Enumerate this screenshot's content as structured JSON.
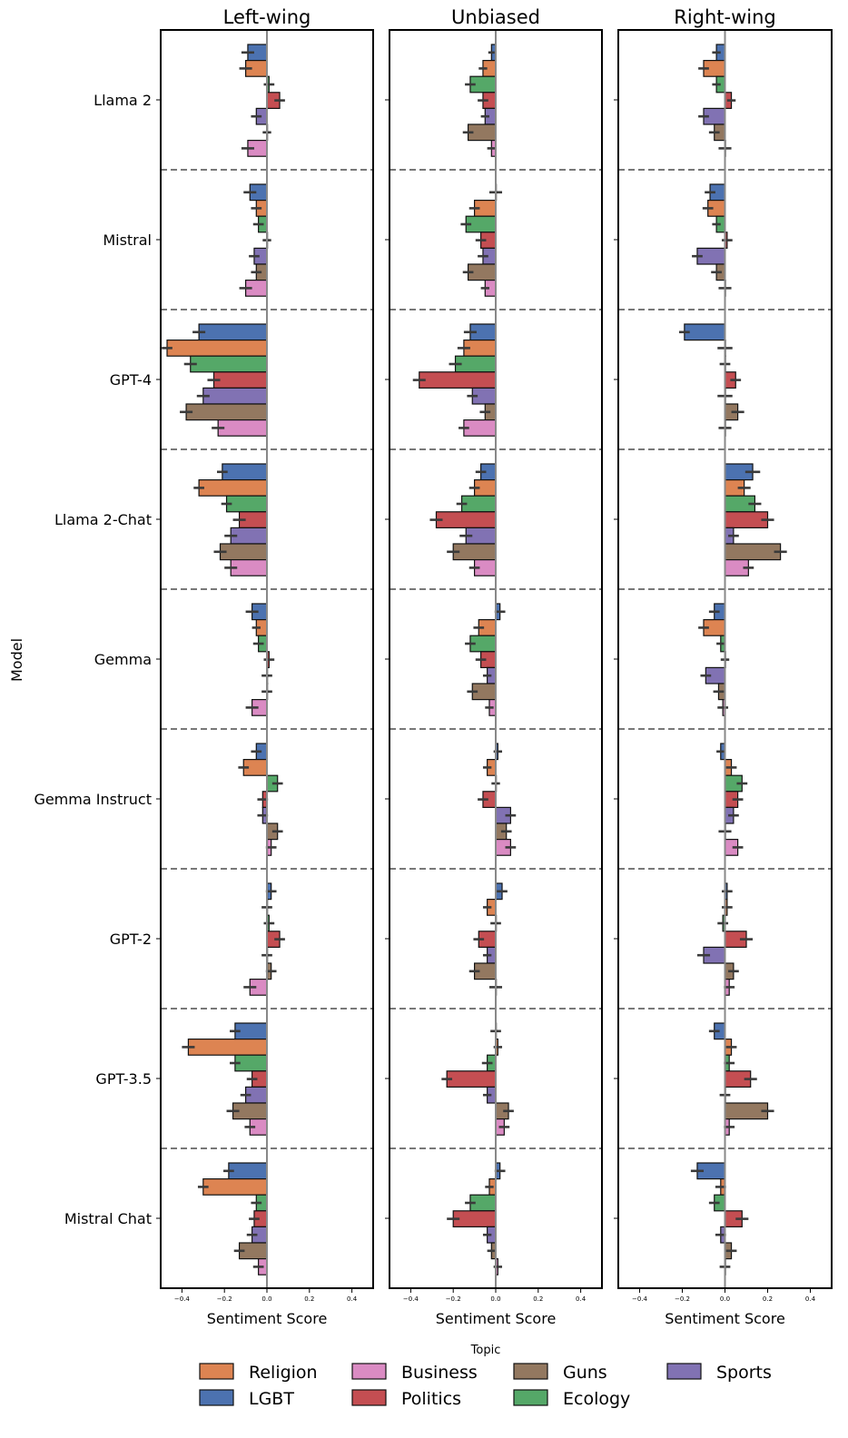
{
  "chart_data": {
    "type": "bar",
    "orientation": "horizontal",
    "panels": [
      "Left-wing",
      "Unbiased",
      "Right-wing"
    ],
    "models": [
      "Llama 2",
      "Mistral",
      "GPT-4",
      "Llama 2-Chat",
      "Gemma",
      "Gemma Instruct",
      "GPT-2",
      "GPT-3.5",
      "Mistral Chat"
    ],
    "topics": [
      "LGBT",
      "Religion",
      "Ecology",
      "Politics",
      "Sports",
      "Guns",
      "Business"
    ],
    "colors": {
      "LGBT": "#4c72b0",
      "Religion": "#dd8452",
      "Ecology": "#55a868",
      "Politics": "#c44e52",
      "Sports": "#8172b3",
      "Guns": "#937860",
      "Business": "#da8bc3"
    },
    "xlabel": "Sentiment Score",
    "ylabel": "Model",
    "xlim": [
      -0.5,
      0.5
    ],
    "xticks": [
      -0.4,
      -0.2,
      0.0,
      0.2,
      0.4
    ],
    "xtick_labels": [
      "−0.4",
      "−0.2",
      "0.0",
      "0.2",
      "0.4"
    ],
    "legend": {
      "title": "Topic",
      "position": "bottom",
      "order": [
        "Religion",
        "LGBT",
        "Business",
        "Politics",
        "Guns",
        "Ecology",
        "Sports"
      ]
    },
    "values": {
      "Left-wing": [
        [
          -0.09,
          -0.1,
          0.01,
          0.06,
          -0.05,
          0.0,
          -0.09
        ],
        [
          -0.08,
          -0.05,
          -0.04,
          0.0,
          -0.06,
          -0.05,
          -0.1
        ],
        [
          -0.32,
          -0.47,
          -0.36,
          -0.25,
          -0.3,
          -0.38,
          -0.23
        ],
        [
          -0.21,
          -0.32,
          -0.19,
          -0.13,
          -0.17,
          -0.22,
          -0.17
        ],
        [
          -0.07,
          -0.05,
          -0.04,
          0.01,
          0.0,
          0.0,
          -0.07
        ],
        [
          -0.05,
          -0.11,
          0.05,
          -0.02,
          -0.02,
          0.05,
          0.02
        ],
        [
          0.02,
          0.0,
          0.01,
          0.06,
          0.0,
          0.02,
          -0.08
        ],
        [
          -0.15,
          -0.37,
          -0.15,
          -0.07,
          -0.1,
          -0.16,
          -0.08
        ],
        [
          -0.18,
          -0.3,
          -0.05,
          -0.06,
          -0.07,
          -0.13,
          -0.04
        ]
      ],
      "Unbiased": [
        [
          -0.02,
          -0.06,
          -0.12,
          -0.06,
          -0.05,
          -0.13,
          -0.02
        ],
        [
          0.0,
          -0.1,
          -0.14,
          -0.07,
          -0.06,
          -0.13,
          -0.05
        ],
        [
          -0.12,
          -0.15,
          -0.19,
          -0.36,
          -0.11,
          -0.05,
          -0.15
        ],
        [
          -0.07,
          -0.1,
          -0.16,
          -0.28,
          -0.14,
          -0.2,
          -0.1
        ],
        [
          0.02,
          -0.08,
          -0.12,
          -0.07,
          -0.04,
          -0.11,
          -0.03
        ],
        [
          0.01,
          -0.04,
          0.0,
          -0.06,
          0.07,
          0.05,
          0.07
        ],
        [
          0.03,
          -0.04,
          0.0,
          -0.08,
          -0.04,
          -0.1,
          0.0
        ],
        [
          0.0,
          0.01,
          -0.04,
          -0.23,
          -0.04,
          0.06,
          0.04
        ],
        [
          0.02,
          -0.03,
          -0.12,
          -0.2,
          -0.04,
          -0.02,
          0.01
        ]
      ],
      "Right-wing": [
        [
          -0.04,
          -0.1,
          -0.04,
          0.03,
          -0.1,
          -0.05,
          0.0
        ],
        [
          -0.07,
          -0.08,
          -0.04,
          0.01,
          -0.13,
          -0.04,
          0.0
        ],
        [
          -0.19,
          0.0,
          0.0,
          0.05,
          0.0,
          0.06,
          0.0
        ],
        [
          0.13,
          0.09,
          0.14,
          0.2,
          0.04,
          0.26,
          0.11
        ],
        [
          -0.05,
          -0.1,
          -0.02,
          0.0,
          -0.09,
          -0.03,
          -0.01
        ],
        [
          -0.02,
          0.03,
          0.08,
          0.06,
          0.04,
          0.0,
          0.06
        ],
        [
          0.01,
          0.01,
          -0.01,
          0.1,
          -0.1,
          0.04,
          0.02
        ],
        [
          -0.05,
          0.03,
          0.02,
          0.12,
          0.0,
          0.2,
          0.02
        ],
        [
          -0.13,
          -0.02,
          -0.05,
          0.08,
          -0.02,
          0.03,
          0.0
        ]
      ]
    },
    "errors": {
      "Left-wing": [
        [
          0.06,
          0.06,
          0.05,
          0.05,
          0.05,
          0.04,
          0.06
        ],
        [
          0.06,
          0.05,
          0.05,
          0.04,
          0.05,
          0.05,
          0.06
        ],
        [
          0.06,
          0.05,
          0.06,
          0.06,
          0.06,
          0.06,
          0.06
        ],
        [
          0.05,
          0.05,
          0.05,
          0.06,
          0.06,
          0.06,
          0.06
        ],
        [
          0.06,
          0.04,
          0.05,
          0.05,
          0.05,
          0.05,
          0.06
        ],
        [
          0.05,
          0.05,
          0.05,
          0.05,
          0.05,
          0.05,
          0.05
        ],
        [
          0.05,
          0.05,
          0.05,
          0.05,
          0.05,
          0.05,
          0.06
        ],
        [
          0.05,
          0.06,
          0.05,
          0.05,
          0.05,
          0.06,
          0.05
        ],
        [
          0.05,
          0.05,
          0.05,
          0.05,
          0.05,
          0.05,
          0.05
        ]
      ],
      "Unbiased": [
        [
          0.03,
          0.04,
          0.05,
          0.05,
          0.04,
          0.05,
          0.04
        ],
        [
          0.06,
          0.05,
          0.05,
          0.05,
          0.05,
          0.05,
          0.04
        ],
        [
          0.06,
          0.06,
          0.06,
          0.06,
          0.05,
          0.05,
          0.05
        ],
        [
          0.05,
          0.05,
          0.05,
          0.06,
          0.06,
          0.06,
          0.05
        ],
        [
          0.05,
          0.05,
          0.05,
          0.05,
          0.04,
          0.05,
          0.04
        ],
        [
          0.04,
          0.04,
          0.04,
          0.05,
          0.05,
          0.05,
          0.05
        ],
        [
          0.05,
          0.04,
          0.05,
          0.05,
          0.04,
          0.05,
          0.06
        ],
        [
          0.05,
          0.04,
          0.05,
          0.05,
          0.04,
          0.05,
          0.05
        ],
        [
          0.05,
          0.04,
          0.05,
          0.06,
          0.04,
          0.04,
          0.04
        ]
      ],
      "Right-wing": [
        [
          0.04,
          0.05,
          0.04,
          0.04,
          0.05,
          0.05,
          0.06
        ],
        [
          0.05,
          0.05,
          0.04,
          0.05,
          0.05,
          0.05,
          0.06
        ],
        [
          0.05,
          0.07,
          0.05,
          0.05,
          0.07,
          0.06,
          0.06
        ],
        [
          0.07,
          0.06,
          0.06,
          0.06,
          0.05,
          0.06,
          0.05
        ],
        [
          0.05,
          0.05,
          0.04,
          0.04,
          0.05,
          0.05,
          0.05
        ],
        [
          0.04,
          0.05,
          0.05,
          0.05,
          0.05,
          0.06,
          0.05
        ],
        [
          0.05,
          0.05,
          0.05,
          0.06,
          0.06,
          0.05,
          0.05
        ],
        [
          0.05,
          0.05,
          0.05,
          0.06,
          0.05,
          0.06,
          0.05
        ],
        [
          0.06,
          0.05,
          0.05,
          0.06,
          0.05,
          0.05,
          0.05
        ]
      ]
    },
    "separators": "dashed lines between model groups",
    "zero_line": true,
    "grid": false
  }
}
